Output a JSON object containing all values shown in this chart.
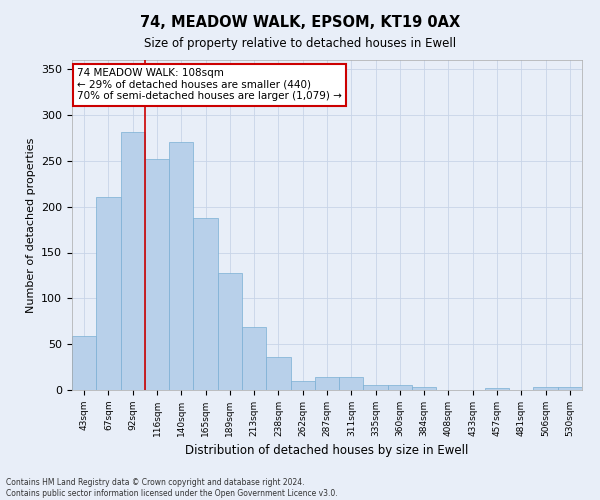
{
  "title": "74, MEADOW WALK, EPSOM, KT19 0AX",
  "subtitle": "Size of property relative to detached houses in Ewell",
  "xlabel": "Distribution of detached houses by size in Ewell",
  "ylabel": "Number of detached properties",
  "categories": [
    "43sqm",
    "67sqm",
    "92sqm",
    "116sqm",
    "140sqm",
    "165sqm",
    "189sqm",
    "213sqm",
    "238sqm",
    "262sqm",
    "287sqm",
    "311sqm",
    "335sqm",
    "360sqm",
    "384sqm",
    "408sqm",
    "433sqm",
    "457sqm",
    "481sqm",
    "506sqm",
    "530sqm"
  ],
  "values": [
    59,
    210,
    282,
    252,
    270,
    188,
    128,
    69,
    36,
    10,
    14,
    14,
    5,
    5,
    3,
    0,
    0,
    2,
    0,
    3,
    3
  ],
  "bar_color": "#b8d0ea",
  "bar_edge_color": "#7aafd4",
  "annotation_line_index": 2.5,
  "annotation_text_line1": "74 MEADOW WALK: 108sqm",
  "annotation_text_line2": "← 29% of detached houses are smaller (440)",
  "annotation_text_line3": "70% of semi-detached houses are larger (1,079) →",
  "annotation_box_color": "#ffffff",
  "annotation_box_edge_color": "#cc0000",
  "vline_color": "#cc0000",
  "grid_color": "#c8d4e8",
  "background_color": "#e8eef8",
  "ylim": [
    0,
    360
  ],
  "yticks": [
    0,
    50,
    100,
    150,
    200,
    250,
    300,
    350
  ],
  "footer_line1": "Contains HM Land Registry data © Crown copyright and database right 2024.",
  "footer_line2": "Contains public sector information licensed under the Open Government Licence v3.0."
}
